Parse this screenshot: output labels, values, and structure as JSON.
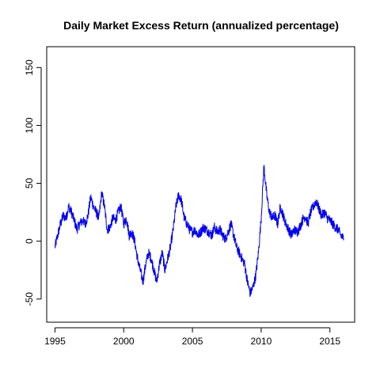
{
  "chart_data": {
    "type": "line",
    "title": "Daily Market Excess Return (annualized percentage)",
    "xlabel": "",
    "ylabel": "",
    "xlim": [
      1994.4,
      2016.8
    ],
    "ylim": [
      -70,
      168
    ],
    "x_ticks": [
      1995,
      2000,
      2005,
      2010,
      2015
    ],
    "x_tick_labels": [
      "1995",
      "2000",
      "2005",
      "2010",
      "2015"
    ],
    "y_ticks": [
      -50,
      0,
      50,
      100,
      150
    ],
    "y_tick_labels": [
      "-50",
      "0",
      "50",
      "100",
      "150"
    ],
    "grid": false,
    "series": [
      {
        "color": "#0000ee",
        "x": [
          1995.0,
          1995.2,
          1995.4,
          1995.6,
          1995.8,
          1996.0,
          1996.2,
          1996.4,
          1996.6,
          1996.8,
          1997.0,
          1997.2,
          1997.4,
          1997.6,
          1997.8,
          1998.0,
          1998.2,
          1998.4,
          1998.6,
          1998.8,
          1999.0,
          1999.2,
          1999.4,
          1999.6,
          1999.8,
          2000.0,
          2000.2,
          2000.4,
          2000.6,
          2000.8,
          2001.0,
          2001.2,
          2001.4,
          2001.6,
          2001.8,
          2002.0,
          2002.2,
          2002.4,
          2002.6,
          2002.8,
          2003.0,
          2003.2,
          2003.4,
          2003.6,
          2003.8,
          2004.0,
          2004.2,
          2004.4,
          2004.6,
          2004.8,
          2005.0,
          2005.2,
          2005.4,
          2005.6,
          2005.8,
          2006.0,
          2006.2,
          2006.4,
          2006.6,
          2006.8,
          2007.0,
          2007.2,
          2007.4,
          2007.6,
          2007.8,
          2008.0,
          2008.2,
          2008.4,
          2008.6,
          2008.8,
          2009.0,
          2009.2,
          2009.4,
          2009.6,
          2009.8,
          2010.0,
          2010.2,
          2010.4,
          2010.6,
          2010.8,
          2011.0,
          2011.2,
          2011.4,
          2011.6,
          2011.8,
          2012.0,
          2012.2,
          2012.4,
          2012.6,
          2012.8,
          2013.0,
          2013.2,
          2013.4,
          2013.6,
          2013.8,
          2014.0,
          2014.2,
          2014.4,
          2014.6,
          2014.8,
          2015.0,
          2015.2,
          2015.4,
          2015.6,
          2015.8,
          2016.0
        ],
        "y": [
          -5,
          5,
          15,
          22,
          20,
          30,
          25,
          18,
          10,
          15,
          18,
          15,
          22,
          38,
          30,
          25,
          20,
          42,
          30,
          10,
          12,
          20,
          18,
          25,
          30,
          15,
          20,
          5,
          8,
          0,
          -15,
          -25,
          -35,
          -20,
          -10,
          -15,
          -25,
          -35,
          -20,
          -10,
          -25,
          -15,
          -5,
          10,
          30,
          40,
          35,
          20,
          15,
          10,
          8,
          10,
          5,
          8,
          12,
          10,
          8,
          5,
          12,
          8,
          10,
          5,
          2,
          8,
          15,
          5,
          -5,
          -10,
          -15,
          -20,
          -35,
          -45,
          -40,
          -30,
          -10,
          20,
          65,
          40,
          25,
          20,
          22,
          15,
          30,
          22,
          15,
          10,
          5,
          10,
          8,
          12,
          18,
          22,
          15,
          25,
          30,
          35,
          28,
          22,
          25,
          20,
          18,
          15,
          12,
          10,
          5,
          2
        ]
      }
    ]
  }
}
